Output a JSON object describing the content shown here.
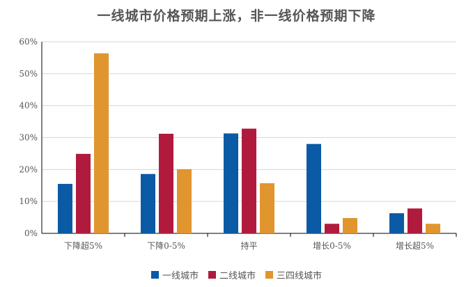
{
  "chart_data": {
    "type": "bar",
    "title": "一线城市价格预期上涨，非一线价格预期下降",
    "categories": [
      "下降超5%",
      "下降0-5%",
      "持平",
      "增长0-5%",
      "增长超5%"
    ],
    "ylim": [
      0,
      60
    ],
    "yticks": [
      "0%",
      "10%",
      "20%",
      "30%",
      "40%",
      "50%",
      "60%"
    ],
    "grid": true,
    "legend_position": "bottom",
    "series": [
      {
        "name": "一线城市",
        "color": "#0a5aa5",
        "values": [
          15.5,
          18.6,
          31.3,
          28.0,
          6.3
        ]
      },
      {
        "name": "二线城市",
        "color": "#b01b3d",
        "values": [
          24.9,
          31.2,
          32.8,
          3.0,
          7.8
        ]
      },
      {
        "name": "三四线城市",
        "color": "#e0952e",
        "values": [
          56.4,
          20.1,
          15.7,
          4.8,
          3.0
        ]
      }
    ]
  }
}
